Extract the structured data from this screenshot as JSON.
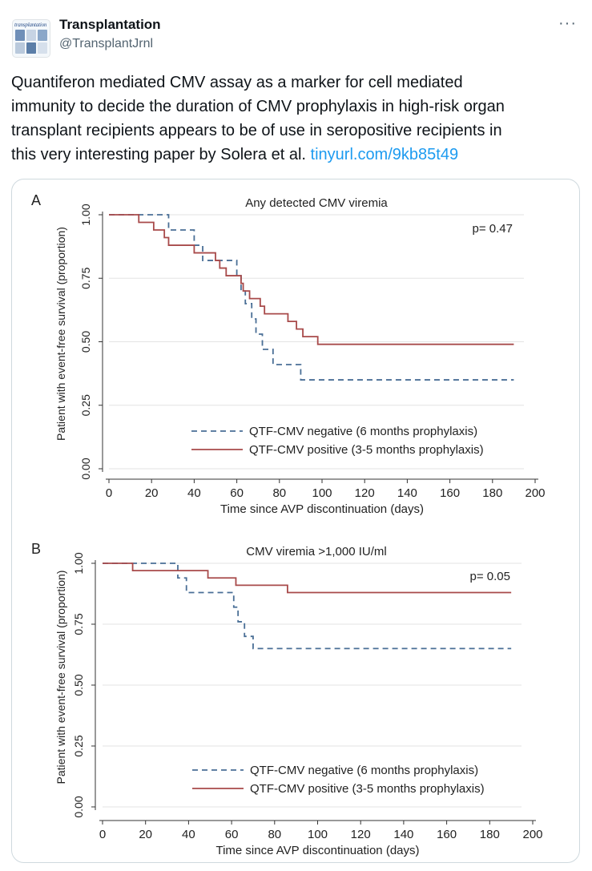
{
  "account": {
    "name": "Transplantation",
    "handle": "@TransplantJrnl",
    "avatar_text": "transplantation",
    "icons": {
      "avatar": "journal-cover",
      "more": "more-horizontal-icon"
    }
  },
  "more_label": "···",
  "tweet": {
    "lines": [
      "Quantiferon mediated CMV assay as a marker for cell mediated",
      "immunity to decide the duration of CMV prophylaxis in high-risk organ",
      "transplant recipients appears to be of use in seropositive recipients in",
      "this very interesting paper by Solera et al. "
    ],
    "link": "tinyurl.com/9kb85t49",
    "link_color": "#1d9bf0"
  },
  "chart_data": [
    {
      "type": "line",
      "panel_label": "A",
      "title": "Any detected CMV viremia",
      "xlabel": "Time since AVP discontinuation (days)",
      "ylabel": "Patient with event-free survival (proportion)",
      "xlim": [
        0,
        200
      ],
      "ylim": [
        0,
        1
      ],
      "xticks": [
        "0",
        "20",
        "40",
        "60",
        "80",
        "100",
        "120",
        "140",
        "160",
        "180",
        "200"
      ],
      "yticks": [
        "0.00",
        "0.25",
        "0.50",
        "0.75",
        "1.00"
      ],
      "grid": true,
      "legend_position": "bottom-right",
      "annotation": "p= 0.47",
      "series": [
        {
          "name": "QTF-CMV negative (6 months prophylaxis)",
          "style": "dashed",
          "color": "#4a6f96",
          "x": [
            0,
            27,
            28,
            40,
            44,
            60,
            62,
            64,
            67,
            69,
            72,
            77,
            90,
            92,
            98,
            190
          ],
          "y": [
            1.0,
            1.0,
            0.94,
            0.88,
            0.82,
            0.76,
            0.7,
            0.65,
            0.59,
            0.53,
            0.47,
            0.41,
            0.35,
            0.35,
            0.35,
            0.35
          ]
        },
        {
          "name": "QTF-CMV positive (3-5 months prophylaxis)",
          "style": "solid",
          "color": "#a84a4a",
          "x": [
            0,
            14,
            21,
            26,
            28,
            40,
            50,
            52,
            55,
            62,
            63,
            66,
            71,
            73,
            84,
            88,
            91,
            98,
            190
          ],
          "y": [
            1.0,
            0.97,
            0.94,
            0.91,
            0.88,
            0.85,
            0.82,
            0.79,
            0.76,
            0.73,
            0.7,
            0.67,
            0.64,
            0.61,
            0.58,
            0.55,
            0.52,
            0.49,
            0.49
          ]
        }
      ]
    },
    {
      "type": "line",
      "panel_label": "B",
      "title": "CMV viremia >1,000 IU/ml",
      "xlabel": "Time since AVP discontinuation (days)",
      "ylabel": "Patient with event-free survival (proportion)",
      "xlim": [
        0,
        200
      ],
      "ylim": [
        0,
        1
      ],
      "xticks": [
        "0",
        "20",
        "40",
        "60",
        "80",
        "100",
        "120",
        "140",
        "160",
        "180",
        "200"
      ],
      "yticks": [
        "0.00",
        "0.25",
        "0.50",
        "0.75",
        "1.00"
      ],
      "grid": true,
      "legend_position": "bottom-right",
      "annotation": "p= 0.05",
      "series": [
        {
          "name": "QTF-CMV negative (6 months prophylaxis)",
          "style": "dashed",
          "color": "#4a6f96",
          "x": [
            0,
            35,
            39,
            61,
            63,
            66,
            70,
            77,
            190
          ],
          "y": [
            1.0,
            0.94,
            0.88,
            0.82,
            0.76,
            0.7,
            0.65,
            0.65,
            0.65
          ]
        },
        {
          "name": "QTF-CMV positive (3-5 months prophylaxis)",
          "style": "solid",
          "color": "#a84a4a",
          "x": [
            0,
            14,
            49,
            62,
            86,
            190
          ],
          "y": [
            1.0,
            0.97,
            0.94,
            0.91,
            0.88,
            0.88
          ]
        }
      ]
    }
  ]
}
